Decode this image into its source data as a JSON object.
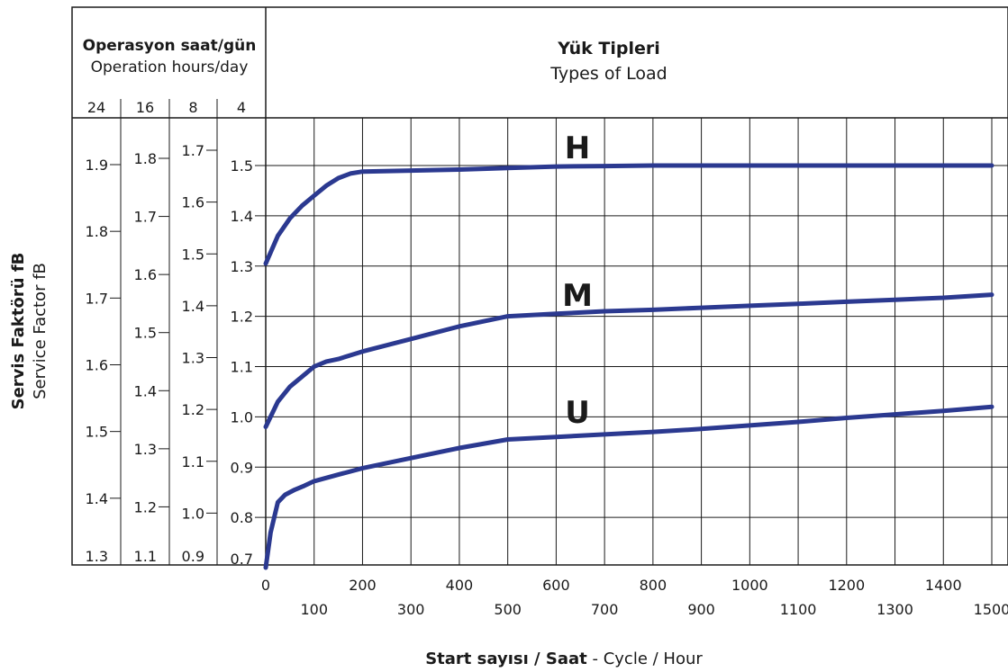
{
  "header": {
    "hours_title_bold": "Operasyon saat/gün",
    "hours_title": "Operation hours/day",
    "load_title_bold": "Yük Tipleri",
    "load_title": "Types of Load"
  },
  "chart_data": {
    "type": "line",
    "xlabel_bold": "Start sayısı / Saat",
    "xlabel_sep": " - ",
    "xlabel": "Cycle / Hour",
    "ylabel_bold": "Servis Faktörü fB",
    "ylabel": "Service Factor fB",
    "xlim": [
      0,
      1500
    ],
    "x_ticks_upper": [
      "0",
      "200",
      "400",
      "600",
      "800",
      "1000",
      "1200",
      "1400"
    ],
    "x_ticks_lower": [
      "100",
      "300",
      "500",
      "700",
      "900",
      "1100",
      "1300",
      "1500"
    ],
    "ylim": [
      0.7,
      1.5
    ],
    "grid": true,
    "hour_columns": [
      {
        "hours": "24",
        "ticks": [
          1.3,
          1.4,
          1.5,
          1.6,
          1.7,
          1.8,
          1.9
        ],
        "labels": [
          "1.3",
          "1.4",
          "1.5",
          "1.6",
          "1.7",
          "1.8",
          "1.9"
        ]
      },
      {
        "hours": "16",
        "ticks": [
          1.1,
          1.2,
          1.3,
          1.4,
          1.5,
          1.6,
          1.7,
          1.8
        ],
        "labels": [
          "1.1",
          "1.2",
          "1.3",
          "1.4",
          "1.5",
          "1.6",
          "1.7",
          "1.8"
        ]
      },
      {
        "hours": "8",
        "ticks": [
          0.9,
          1.0,
          1.1,
          1.2,
          1.3,
          1.4,
          1.5,
          1.6,
          1.7
        ],
        "labels": [
          "0.9",
          "1.0",
          "1.1",
          "1.2",
          "1.3",
          "1.4",
          "1.5",
          "1.6",
          "1.7"
        ]
      },
      {
        "hours": "4",
        "ticks": [
          0.7,
          0.8,
          0.9,
          1.0,
          1.1,
          1.2,
          1.3,
          1.4,
          1.5
        ],
        "labels": [
          "0.7",
          "0.8",
          "0.9",
          "1.0",
          "1.1",
          "1.2",
          "1.3",
          "1.4",
          "1.5"
        ]
      }
    ],
    "series": [
      {
        "name": "H",
        "color": "#2b3990",
        "x": [
          0,
          25,
          50,
          75,
          100,
          125,
          150,
          175,
          200,
          300,
          400,
          500,
          600,
          700,
          800,
          900,
          1000,
          1100,
          1200,
          1300,
          1400,
          1500
        ],
        "y": [
          1.305,
          1.36,
          1.395,
          1.42,
          1.44,
          1.46,
          1.475,
          1.484,
          1.488,
          1.49,
          1.492,
          1.495,
          1.498,
          1.499,
          1.5,
          1.5,
          1.5,
          1.5,
          1.5,
          1.5,
          1.5,
          1.5
        ]
      },
      {
        "name": "M",
        "color": "#2b3990",
        "x": [
          0,
          25,
          50,
          75,
          100,
          125,
          150,
          200,
          300,
          400,
          500,
          600,
          700,
          800,
          900,
          1000,
          1100,
          1200,
          1300,
          1400,
          1500
        ],
        "y": [
          0.98,
          1.03,
          1.06,
          1.08,
          1.1,
          1.11,
          1.115,
          1.13,
          1.155,
          1.18,
          1.2,
          1.205,
          1.21,
          1.213,
          1.217,
          1.221,
          1.225,
          1.229,
          1.233,
          1.237,
          1.243
        ]
      },
      {
        "name": "U",
        "color": "#2b3990",
        "x": [
          0,
          10,
          25,
          40,
          60,
          80,
          100,
          150,
          200,
          300,
          400,
          500,
          600,
          700,
          800,
          900,
          1000,
          1100,
          1200,
          1300,
          1400,
          1500
        ],
        "y": [
          0.7,
          0.77,
          0.83,
          0.845,
          0.855,
          0.863,
          0.872,
          0.885,
          0.898,
          0.918,
          0.938,
          0.955,
          0.96,
          0.965,
          0.97,
          0.976,
          0.983,
          0.99,
          0.998,
          1.005,
          1.012,
          1.02
        ]
      }
    ]
  }
}
